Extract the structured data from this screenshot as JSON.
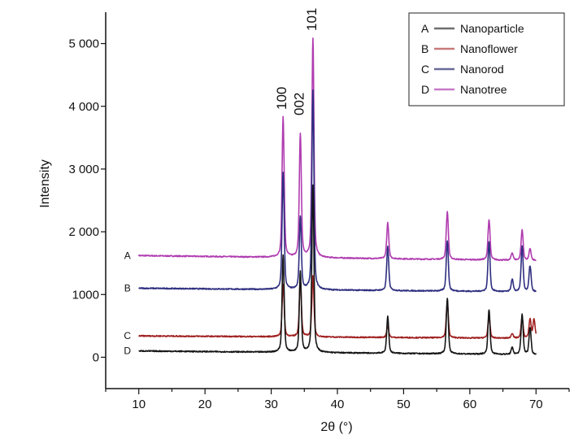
{
  "chart_data": {
    "type": "line",
    "title": "",
    "xlabel": "2θ (°)",
    "ylabel": "Intensity",
    "xlim": [
      5,
      75
    ],
    "ylim": [
      -500,
      5500
    ],
    "xticks": [
      10,
      20,
      30,
      40,
      50,
      60,
      70
    ],
    "xtick_labels": [
      "10",
      "20",
      "30",
      "40",
      "50",
      "60",
      "70"
    ],
    "yticks": [
      0,
      1000,
      2000,
      3000,
      4000,
      5000
    ],
    "ytick_labels": [
      "0",
      "1000",
      "2 000",
      "3 000",
      "4 000",
      "5 000"
    ],
    "grid": false,
    "legend_position": "top-right",
    "legend": [
      {
        "letter": "A",
        "name": "Nanoparticle",
        "color": "#6e6e6e"
      },
      {
        "letter": "B",
        "name": "Nanoflower",
        "color": "#c77a7a"
      },
      {
        "letter": "C",
        "name": "Nanorod",
        "color": "#6a6a9a"
      },
      {
        "letter": "D",
        "name": "Nanotree",
        "color": "#c77ac7"
      }
    ],
    "peak_labels": [
      {
        "text": "100",
        "x": 31.8
      },
      {
        "text": "002",
        "x": 34.4
      },
      {
        "text": "101",
        "x": 36.3
      }
    ],
    "series": [
      {
        "trace_label": "A",
        "color": "#b03cb0",
        "x_start": 10,
        "x_end": 70,
        "base_start": 1620,
        "base_end": 1540,
        "peaks": [
          {
            "x": 31.8,
            "h": 3820
          },
          {
            "x": 34.4,
            "h": 3550
          },
          {
            "x": 36.3,
            "h": 5080
          },
          {
            "x": 47.6,
            "h": 2140
          },
          {
            "x": 56.6,
            "h": 2320
          },
          {
            "x": 62.9,
            "h": 2190
          },
          {
            "x": 66.4,
            "h": 1660
          },
          {
            "x": 67.9,
            "h": 2030
          },
          {
            "x": 69.1,
            "h": 1720
          }
        ]
      },
      {
        "trace_label": "B",
        "color": "#2e2e80",
        "x_start": 10,
        "x_end": 70,
        "base_start": 1100,
        "base_end": 1040,
        "peaks": [
          {
            "x": 31.8,
            "h": 2940
          },
          {
            "x": 34.4,
            "h": 2240
          },
          {
            "x": 36.3,
            "h": 4250
          },
          {
            "x": 47.6,
            "h": 1760
          },
          {
            "x": 56.6,
            "h": 1860
          },
          {
            "x": 62.9,
            "h": 1840
          },
          {
            "x": 66.4,
            "h": 1240
          },
          {
            "x": 67.9,
            "h": 1760
          },
          {
            "x": 69.1,
            "h": 1450
          }
        ]
      },
      {
        "trace_label": "C",
        "color": "#a02020",
        "x_start": 10,
        "x_end": 70,
        "base_start": 340,
        "base_end": 300,
        "peaks": [
          {
            "x": 31.8,
            "h": 1160
          },
          {
            "x": 34.4,
            "h": 1240
          },
          {
            "x": 36.3,
            "h": 1300
          },
          {
            "x": 47.6,
            "h": 500
          },
          {
            "x": 56.6,
            "h": 880
          },
          {
            "x": 62.9,
            "h": 650
          },
          {
            "x": 66.4,
            "h": 380
          },
          {
            "x": 67.9,
            "h": 630
          },
          {
            "x": 69.1,
            "h": 600
          },
          {
            "x": 69.7,
            "h": 600
          }
        ]
      },
      {
        "trace_label": "D",
        "color": "#151515",
        "x_start": 10,
        "x_end": 70,
        "base_start": 100,
        "base_end": 40,
        "peaks": [
          {
            "x": 31.8,
            "h": 1620
          },
          {
            "x": 34.4,
            "h": 1360
          },
          {
            "x": 36.3,
            "h": 2740
          },
          {
            "x": 47.6,
            "h": 650
          },
          {
            "x": 56.6,
            "h": 940
          },
          {
            "x": 62.9,
            "h": 760
          },
          {
            "x": 66.4,
            "h": 150
          },
          {
            "x": 67.9,
            "h": 680
          },
          {
            "x": 69.1,
            "h": 470
          }
        ]
      }
    ]
  }
}
